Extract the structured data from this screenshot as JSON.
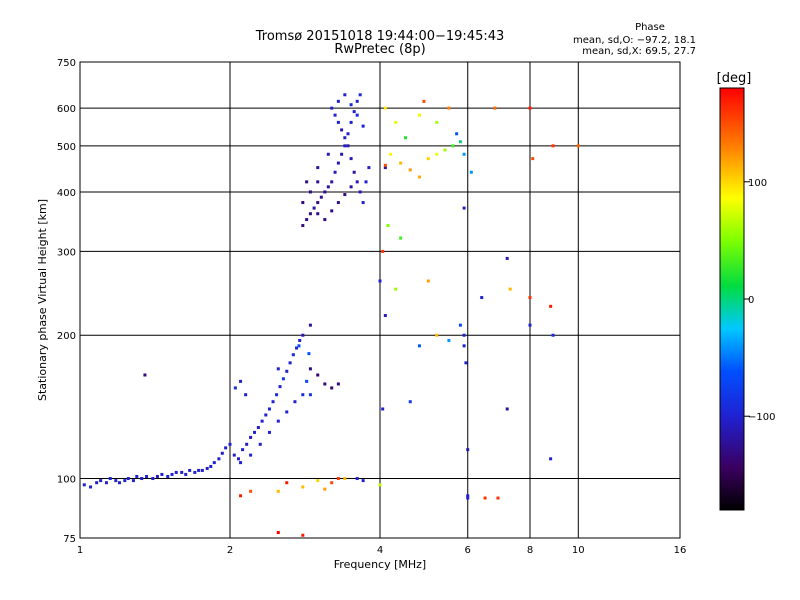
{
  "chart_data": {
    "type": "scatter",
    "title": "Tromsø 20151018 19:44:00−19:45:43",
    "subtitle": "RwPretec (8p)",
    "xlabel": "Frequency [MHz]",
    "ylabel": "Stationary phase Virtual Height [km]",
    "x_scale": "log",
    "y_scale": "log",
    "xlim": [
      1,
      16
    ],
    "ylim": [
      75,
      750
    ],
    "x_ticks": [
      "1",
      "2",
      "4",
      "6",
      "8",
      "10",
      "16"
    ],
    "x_tick_values": [
      1,
      2,
      4,
      6,
      8,
      10,
      16
    ],
    "y_ticks": [
      "75",
      "100",
      "200",
      "300",
      "400",
      "500",
      "600",
      "750"
    ],
    "y_tick_values": [
      75,
      100,
      200,
      300,
      400,
      500,
      600,
      750
    ],
    "grid": true,
    "stats": {
      "title": "Phase",
      "line1": "mean, sd,O: −97.2, 18.1",
      "line2": "mean, sd,X:  69.5, 27.7"
    },
    "colorbar": {
      "label": "[deg]",
      "range": [
        -180,
        180
      ],
      "ticks": [
        "100",
        "0",
        "−100"
      ],
      "tick_values": [
        100,
        0,
        -100
      ]
    },
    "series": [
      {
        "points": [
          [
            1.02,
            97,
            -100
          ],
          [
            1.05,
            96,
            -100
          ],
          [
            1.08,
            98,
            -105
          ],
          [
            1.1,
            99,
            -100
          ],
          [
            1.13,
            98,
            -100
          ],
          [
            1.15,
            100,
            -95
          ],
          [
            1.18,
            99,
            -100
          ],
          [
            1.2,
            98,
            -100
          ],
          [
            1.23,
            99,
            -98
          ],
          [
            1.25,
            100,
            -100
          ],
          [
            1.28,
            99,
            -100
          ],
          [
            1.3,
            101,
            -100
          ],
          [
            1.33,
            100,
            -100
          ],
          [
            1.36,
            101,
            -100
          ],
          [
            1.4,
            100,
            -100
          ],
          [
            1.43,
            101,
            -110
          ],
          [
            1.46,
            102,
            -100
          ],
          [
            1.5,
            101,
            -100
          ],
          [
            1.53,
            102,
            -100
          ],
          [
            1.56,
            103,
            -100
          ],
          [
            1.6,
            103,
            -105
          ],
          [
            1.63,
            102,
            -100
          ],
          [
            1.66,
            104,
            -100
          ],
          [
            1.7,
            103,
            -100
          ],
          [
            1.73,
            104,
            -100
          ],
          [
            1.76,
            104,
            -100
          ],
          [
            1.8,
            105,
            -110
          ],
          [
            1.83,
            106,
            -100
          ],
          [
            1.86,
            108,
            -100
          ],
          [
            1.9,
            110,
            -100
          ],
          [
            1.93,
            113,
            -105
          ],
          [
            1.96,
            116,
            -100
          ],
          [
            2.0,
            118,
            -100
          ],
          [
            2.04,
            112,
            -100
          ],
          [
            2.08,
            110,
            -105
          ],
          [
            2.12,
            115,
            -100
          ],
          [
            2.16,
            118,
            -100
          ],
          [
            2.2,
            122,
            -110
          ],
          [
            2.24,
            125,
            -100
          ],
          [
            2.28,
            128,
            -105
          ],
          [
            2.32,
            132,
            -100
          ],
          [
            2.36,
            136,
            -100
          ],
          [
            2.4,
            140,
            -95
          ],
          [
            2.44,
            145,
            -100
          ],
          [
            2.48,
            150,
            -90
          ],
          [
            2.52,
            156,
            -100
          ],
          [
            2.56,
            162,
            -80
          ],
          [
            2.6,
            168,
            -100
          ],
          [
            2.64,
            175,
            -100
          ],
          [
            2.68,
            182,
            -90
          ],
          [
            2.72,
            188,
            -100
          ],
          [
            2.76,
            195,
            -100
          ],
          [
            2.8,
            200,
            -110
          ],
          [
            2.1,
            108,
            -100
          ],
          [
            2.2,
            112,
            -100
          ],
          [
            2.3,
            118,
            -100
          ],
          [
            2.4,
            125,
            -100
          ],
          [
            2.5,
            132,
            -100
          ],
          [
            2.6,
            138,
            -100
          ],
          [
            2.7,
            145,
            -100
          ],
          [
            2.8,
            150,
            -90
          ],
          [
            2.9,
            170,
            -130
          ],
          [
            3.0,
            165,
            -140
          ],
          [
            3.1,
            158,
            -135
          ],
          [
            3.2,
            155,
            -140
          ],
          [
            3.3,
            158,
            -130
          ],
          [
            2.85,
            160,
            -70
          ],
          [
            2.9,
            150,
            -80
          ],
          [
            1.35,
            165,
            -130
          ],
          [
            2.1,
            160,
            -100
          ],
          [
            2.05,
            155,
            -90
          ],
          [
            2.15,
            150,
            -100
          ],
          [
            2.5,
            170,
            -100
          ],
          [
            2.75,
            190,
            -70
          ],
          [
            2.88,
            183,
            -60
          ],
          [
            2.9,
            210,
            -120
          ],
          [
            2.8,
            340,
            -130
          ],
          [
            2.85,
            350,
            -125
          ],
          [
            2.9,
            360,
            -130
          ],
          [
            2.95,
            370,
            -120
          ],
          [
            3.0,
            380,
            -130
          ],
          [
            3.05,
            390,
            -125
          ],
          [
            3.1,
            400,
            -130
          ],
          [
            3.15,
            410,
            -120
          ],
          [
            3.2,
            420,
            -120
          ],
          [
            3.25,
            440,
            -110
          ],
          [
            3.3,
            460,
            -110
          ],
          [
            3.35,
            480,
            -110
          ],
          [
            3.4,
            500,
            -105
          ],
          [
            3.45,
            530,
            -100
          ],
          [
            3.5,
            560,
            -100
          ],
          [
            3.55,
            590,
            -100
          ],
          [
            3.6,
            620,
            -100
          ],
          [
            3.65,
            640,
            -95
          ],
          [
            3.2,
            600,
            -100
          ],
          [
            3.25,
            580,
            -100
          ],
          [
            3.3,
            560,
            -100
          ],
          [
            3.35,
            540,
            -110
          ],
          [
            3.4,
            520,
            -105
          ],
          [
            3.45,
            500,
            -110
          ],
          [
            3.5,
            470,
            -110
          ],
          [
            3.55,
            440,
            -120
          ],
          [
            3.6,
            420,
            -110
          ],
          [
            3.65,
            400,
            -110
          ],
          [
            3.7,
            380,
            -100
          ],
          [
            3.75,
            420,
            -100
          ],
          [
            3.8,
            450,
            -100
          ],
          [
            3.0,
            360,
            -130
          ],
          [
            3.1,
            350,
            -135
          ],
          [
            3.2,
            365,
            -130
          ],
          [
            3.3,
            380,
            -125
          ],
          [
            3.4,
            395,
            -130
          ],
          [
            3.5,
            410,
            -120
          ],
          [
            3.0,
            420,
            -125
          ],
          [
            2.9,
            400,
            -130
          ],
          [
            2.8,
            380,
            -135
          ],
          [
            2.85,
            420,
            -130
          ],
          [
            3.0,
            450,
            -120
          ],
          [
            3.15,
            480,
            -110
          ],
          [
            3.3,
            620,
            -100
          ],
          [
            3.4,
            640,
            -100
          ],
          [
            3.5,
            610,
            -95
          ],
          [
            3.6,
            580,
            -90
          ],
          [
            3.7,
            550,
            -100
          ],
          [
            4.2,
            480,
            90
          ],
          [
            4.4,
            460,
            110
          ],
          [
            4.6,
            445,
            120
          ],
          [
            4.8,
            430,
            115
          ],
          [
            5.0,
            470,
            100
          ],
          [
            5.2,
            480,
            80
          ],
          [
            5.4,
            490,
            60
          ],
          [
            5.6,
            500,
            30
          ],
          [
            5.8,
            510,
            0
          ],
          [
            5.9,
            480,
            -40
          ],
          [
            4.5,
            520,
            20
          ],
          [
            4.8,
            580,
            90
          ],
          [
            5.2,
            560,
            60
          ],
          [
            4.1,
            600,
            95
          ],
          [
            4.3,
            560,
            80
          ],
          [
            4.9,
            620,
            150
          ],
          [
            5.5,
            600,
            130
          ],
          [
            5.7,
            530,
            -60
          ],
          [
            4.0,
            260,
            -100
          ],
          [
            4.05,
            300,
            160
          ],
          [
            4.05,
            140,
            -100
          ],
          [
            4.1,
            450,
            -120
          ],
          [
            4.1,
            455,
            150
          ],
          [
            4.1,
            220,
            -110
          ],
          [
            4.15,
            340,
            50
          ],
          [
            4.3,
            250,
            60
          ],
          [
            4.4,
            320,
            30
          ],
          [
            4.6,
            145,
            -80
          ],
          [
            4.8,
            190,
            -60
          ],
          [
            5.0,
            260,
            120
          ],
          [
            5.2,
            200,
            110
          ],
          [
            5.5,
            195,
            -40
          ],
          [
            5.8,
            210,
            -70
          ],
          [
            5.9,
            200,
            -100
          ],
          [
            5.9,
            190,
            -100
          ],
          [
            5.95,
            175,
            -100
          ],
          [
            6.0,
            115,
            -110
          ],
          [
            6.0,
            92,
            -100
          ],
          [
            5.9,
            370,
            -100
          ],
          [
            6.1,
            440,
            -40
          ],
          [
            6.4,
            240,
            -100
          ],
          [
            6.8,
            600,
            140
          ],
          [
            7.2,
            290,
            -110
          ],
          [
            7.2,
            140,
            -120
          ],
          [
            7.3,
            250,
            110
          ],
          [
            8.0,
            240,
            160
          ],
          [
            8.0,
            210,
            -100
          ],
          [
            8.0,
            600,
            170
          ],
          [
            8.1,
            470,
            150
          ],
          [
            8.8,
            230,
            170
          ],
          [
            8.9,
            200,
            -90
          ],
          [
            8.9,
            500,
            160
          ],
          [
            8.8,
            110,
            -100
          ],
          [
            10.0,
            500,
            140
          ],
          [
            6.5,
            91,
            160
          ],
          [
            6.0,
            91,
            -100
          ],
          [
            6.9,
            91,
            160
          ],
          [
            3.2,
            98,
            150
          ],
          [
            3.3,
            100,
            160
          ],
          [
            3.4,
            100,
            110
          ],
          [
            3.6,
            100,
            -100
          ],
          [
            3.7,
            99,
            -100
          ],
          [
            2.2,
            94,
            150
          ],
          [
            2.1,
            92,
            170
          ],
          [
            2.5,
            94,
            110
          ],
          [
            2.6,
            98,
            170
          ],
          [
            3.1,
            95,
            120
          ],
          [
            3.0,
            99,
            100
          ],
          [
            2.8,
            96,
            110
          ],
          [
            2.5,
            77,
            180
          ],
          [
            2.8,
            76,
            170
          ],
          [
            4.0,
            97,
            70
          ]
        ]
      }
    ]
  }
}
